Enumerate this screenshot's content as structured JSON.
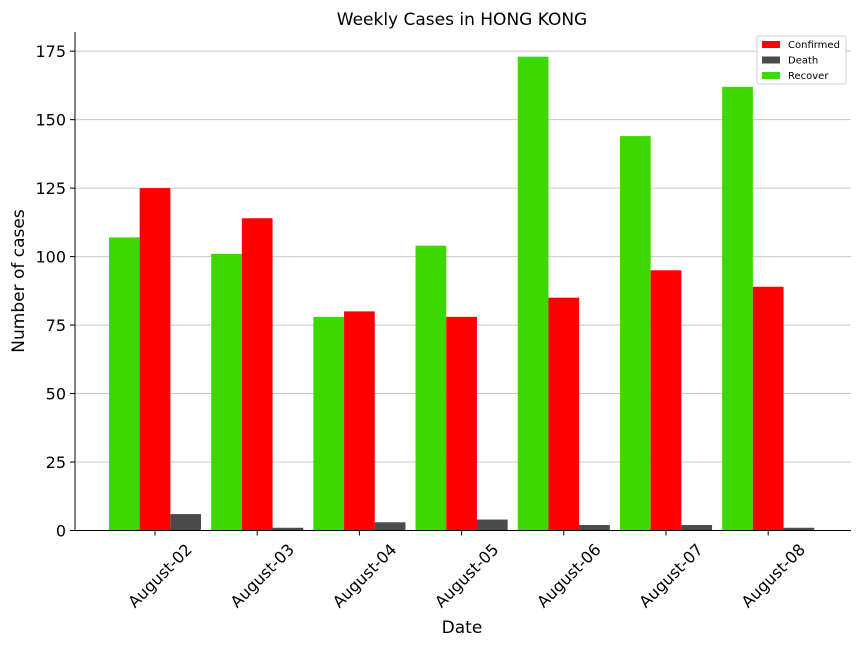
{
  "chart_data": {
    "type": "bar",
    "title": "Weekly Cases in HONG KONG",
    "xlabel": "Date",
    "ylabel": "Number of cases",
    "categories": [
      "August-02",
      "August-03",
      "August-04",
      "August-05",
      "August-06",
      "August-07",
      "August-08"
    ],
    "series": [
      {
        "name": "Recover",
        "color": "#3cd800",
        "values": [
          107,
          101,
          78,
          104,
          173,
          144,
          162
        ]
      },
      {
        "name": "Confirmed",
        "color": "#ff0000",
        "values": [
          125,
          114,
          80,
          78,
          85,
          95,
          89
        ]
      },
      {
        "name": "Death",
        "color": "#4b4b4b",
        "values": [
          6,
          1,
          3,
          4,
          2,
          2,
          1
        ]
      }
    ],
    "legend_order": [
      "Confirmed",
      "Death",
      "Recover"
    ],
    "ylim": [
      0,
      182
    ],
    "yticks": [
      0,
      25,
      50,
      75,
      100,
      125,
      150,
      175
    ],
    "grid": "horizontal",
    "legend_position": "top-right"
  }
}
